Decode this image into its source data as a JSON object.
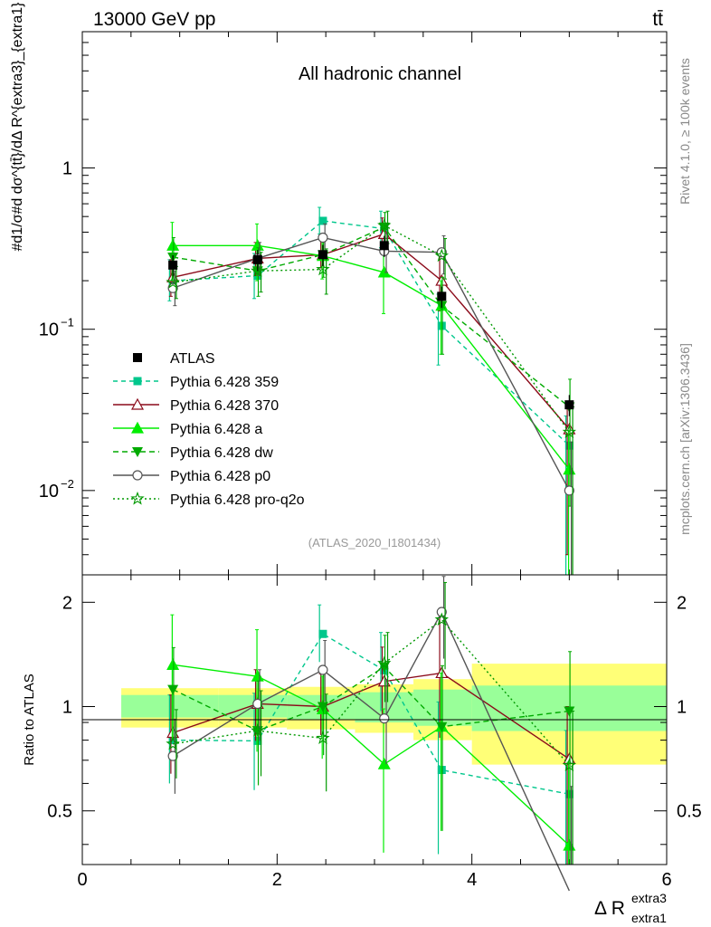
{
  "header": {
    "left": "13000 GeV pp",
    "right": "tt̄"
  },
  "side": {
    "rivet": "Rivet 4.1.0, ≥ 100k events",
    "mcplots": "mcplots.cern.ch [arXiv:1306.3436]"
  },
  "chart_data": {
    "type": "line",
    "title": "All hadronic channel",
    "analysis_id": "(ATLAS_2020_I1801434)",
    "ylabel": "#d1/σ#d dσ^{tt̄}/dΔ R^{extra3}_{extra1}",
    "ratio_ylabel": "Ratio to ATLAS",
    "xlabel": "Δ R",
    "xlabel_sup": "extra3",
    "xlabel_sub": "extra1",
    "xlim": [
      0,
      6
    ],
    "ylim": [
      0.003,
      7
    ],
    "yscale": "log",
    "ratio_ylim": [
      0.35,
      2.4
    ],
    "ratio_yscale": "log",
    "x_ticks": [
      "0",
      "2",
      "4",
      "6"
    ],
    "y_tick_labels": [
      {
        "value": 1,
        "label": "1"
      },
      {
        "value": 0.1,
        "label": "10",
        "exp": "−1"
      },
      {
        "value": 0.01,
        "label": "10",
        "exp": "−2"
      }
    ],
    "ratio_tick_labels": [
      {
        "value": 0.5,
        "label": "0.5"
      },
      {
        "value": 1,
        "label": "1"
      },
      {
        "value": 2,
        "label": "2"
      }
    ],
    "x": [
      0.93,
      1.8,
      2.47,
      3.1,
      3.69,
      5.0
    ],
    "bin_edges": [
      0.4,
      1.4,
      2.1,
      2.8,
      3.4,
      4.0,
      6.0
    ],
    "data": {
      "name": "ATLAS",
      "values": [
        0.25,
        0.27,
        0.29,
        0.33,
        0.16,
        0.034
      ],
      "band_inner": [
        [
          0.93,
          1.08
        ],
        [
          0.93,
          1.08
        ],
        [
          0.92,
          1.08
        ],
        [
          0.9,
          1.1
        ],
        [
          0.88,
          1.12
        ],
        [
          0.85,
          1.15
        ]
      ],
      "band_outer": [
        [
          0.87,
          1.13
        ],
        [
          0.87,
          1.13
        ],
        [
          0.86,
          1.14
        ],
        [
          0.84,
          1.16
        ],
        [
          0.8,
          1.2
        ],
        [
          0.68,
          1.33
        ]
      ]
    },
    "series": [
      {
        "name": "Pythia 6.428 359",
        "color": "#00c78c",
        "dash": "5,4",
        "marker": "square",
        "values": [
          0.2,
          0.215,
          0.47,
          0.42,
          0.105,
          0.019
        ],
        "err_lo": [
          0.05,
          0.06,
          0.08,
          0.1,
          0.045,
          0.016
        ],
        "err_hi": [
          0.07,
          0.08,
          0.1,
          0.12,
          0.06,
          0.01
        ]
      },
      {
        "name": "Pythia 6.428 370",
        "color": "#8b0a1a",
        "dash": "",
        "marker": "triangle-open",
        "values": [
          0.21,
          0.275,
          0.29,
          0.39,
          0.2,
          0.024
        ],
        "err_lo": [
          0.05,
          0.06,
          0.05,
          0.08,
          0.07,
          0.02
        ],
        "err_hi": [
          0.06,
          0.07,
          0.07,
          0.1,
          0.1,
          0.01
        ]
      },
      {
        "name": "Pythia 6.428 a",
        "color": "#00ee00",
        "dash": "",
        "marker": "triangle",
        "values": [
          0.33,
          0.33,
          0.285,
          0.225,
          0.14,
          0.0135
        ],
        "err_lo": [
          0.13,
          0.13,
          0.08,
          0.1,
          0.07,
          0.0127
        ],
        "err_hi": [
          0.13,
          0.12,
          0.07,
          0.1,
          0.06,
          0.01
        ]
      },
      {
        "name": "Pythia 6.428 dw",
        "color": "#00aa00",
        "dash": "6,4",
        "marker": "triangle-down",
        "values": [
          0.28,
          0.23,
          0.29,
          0.43,
          0.14,
          0.033
        ],
        "err_lo": [
          0.08,
          0.07,
          0.08,
          0.09,
          0.07,
          0.025
        ],
        "err_hi": [
          0.09,
          0.09,
          0.08,
          0.1,
          0.07,
          0.016
        ]
      },
      {
        "name": "Pythia 6.428 p0",
        "color": "#555555",
        "dash": "",
        "marker": "circle-open",
        "values": [
          0.18,
          0.275,
          0.37,
          0.305,
          0.3,
          0.01
        ],
        "err_lo": [
          0.04,
          0.06,
          0.07,
          0.08,
          0.08,
          0.0097
        ],
        "err_hi": [
          0.05,
          0.07,
          0.08,
          0.09,
          0.08,
          0.01
        ]
      },
      {
        "name": "Pythia 6.428 pro-q2o",
        "color": "#009900",
        "dash": "2,3",
        "marker": "star",
        "values": [
          0.195,
          0.23,
          0.235,
          0.44,
          0.285,
          0.023
        ],
        "err_lo": [
          0.04,
          0.06,
          0.07,
          0.1,
          0.08,
          0.02
        ],
        "err_hi": [
          0.05,
          0.07,
          0.08,
          0.1,
          0.08,
          0.01
        ]
      }
    ]
  }
}
